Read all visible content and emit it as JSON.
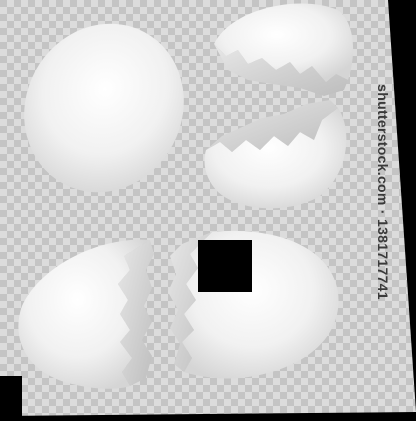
{
  "image": {
    "description_tag": "eggshell-photo",
    "watermark": "shutterstock.com · 1381717741",
    "colors": {
      "checker_light": "#dcdcdc",
      "checker_dark": "#b8b8b8",
      "shell": "#f4f4f4",
      "background": "#000000"
    }
  }
}
